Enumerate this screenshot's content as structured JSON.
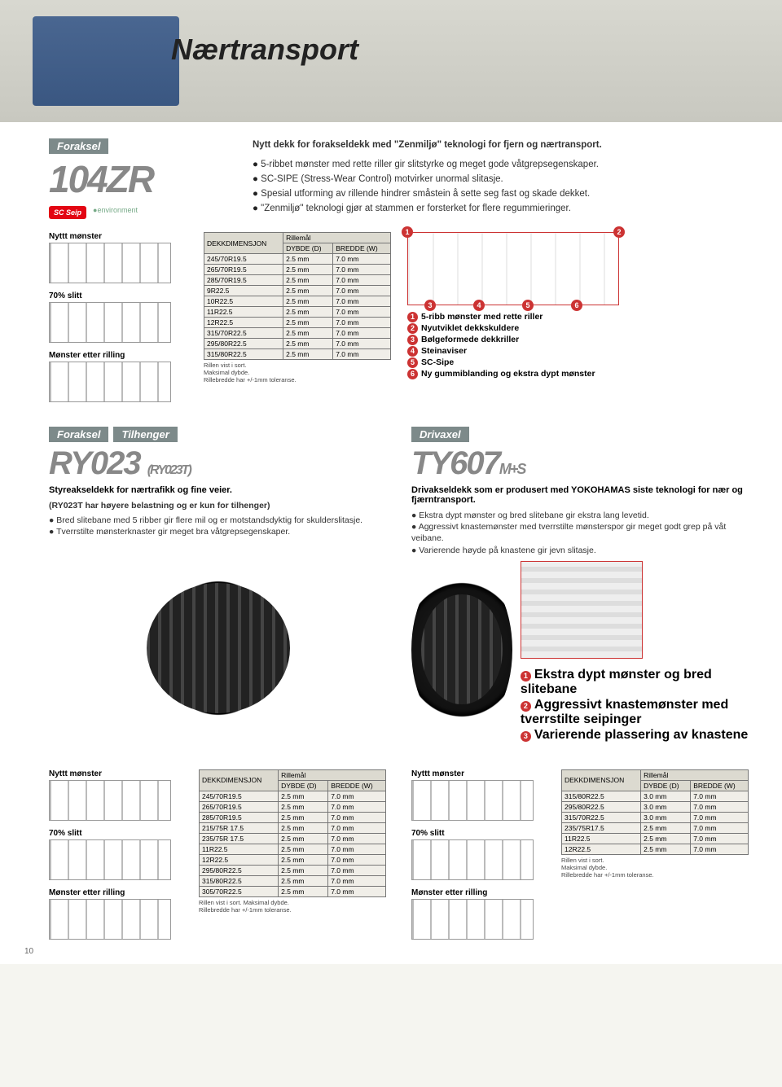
{
  "page": {
    "number": "10"
  },
  "hero": {
    "title": "Nærtransport"
  },
  "colors": {
    "accent": "#e30613",
    "grey": "#7d8a8a",
    "model_grey": "#888888"
  },
  "p104zr": {
    "axle": "Foraksel",
    "model": "104ZR",
    "badge_sc": "SC Seip",
    "badge_env": "●environment",
    "intro": "Nytt dekk for forakseldekk med \"Zenmiljø\" teknologi for fjern og nærtransport.",
    "bullets": [
      "5-ribbet mønster med rette riller gir slitstyrke og meget gode våtgrepsegenskaper.",
      "SC-SIPE (Stress-Wear Control) motvirker unormal slitasje.",
      "Spesial utforming av rillende hindrer småstein å sette seg fast og skade dekket.",
      "\"Zenmiljø\" teknologi gjør at stammen er forsterket for flere regummieringer."
    ],
    "pattern_labels": {
      "new": "Nyttt mønster",
      "worn70": "70% slitt",
      "after": "Mønster etter rilling"
    },
    "table": {
      "title": "Rillemål",
      "col_dim": "DEKKDIMENSJON",
      "col_d": "DYBDE (D)",
      "col_w": "BREDDE (W)",
      "rows": [
        [
          "245/70R19.5",
          "2.5 mm",
          "7.0 mm"
        ],
        [
          "265/70R19.5",
          "2.5 mm",
          "7.0 mm"
        ],
        [
          "285/70R19.5",
          "2.5 mm",
          "7.0 mm"
        ],
        [
          "9R22.5",
          "2.5 mm",
          "7.0 mm"
        ],
        [
          "10R22.5",
          "2.5 mm",
          "7.0 mm"
        ],
        [
          "11R22.5",
          "2.5 mm",
          "7.0 mm"
        ],
        [
          "12R22.5",
          "2.5 mm",
          "7.0 mm"
        ],
        [
          "315/70R22.5",
          "2.5 mm",
          "7.0 mm"
        ],
        [
          "295/80R22.5",
          "2.5 mm",
          "7.0 mm"
        ],
        [
          "315/80R22.5",
          "2.5 mm",
          "7.0 mm"
        ]
      ],
      "notes": [
        "Rillen vist i sort.",
        "Maksimal dybde.",
        "Rillebredde har +/-1mm toleranse."
      ]
    },
    "callouts": [
      "5-ribb mønster med rette riller",
      "Nyutviklet dekkskuldere",
      "Bølgeformede dekkriller",
      "Steinaviser",
      "SC-Sipe",
      "Ny gummiblanding og ekstra dypt mønster"
    ]
  },
  "ry023": {
    "axle1": "Foraksel",
    "axle2": "Tilhenger",
    "model": "RY023",
    "model_alt": "(RY023T)",
    "tagline": "Styreakseldekk for nærtrafikk og fine veier.",
    "note": "(RY023T har høyere belastning og er kun for tilhenger)",
    "bullets": [
      "Bred slitebane med 5 ribber gir flere mil og er motstandsdyktig for skulderslitasje.",
      "Tverrstilte mønsterknaster gir meget bra våtgrepsegenskaper."
    ],
    "table": {
      "title": "Rillemål",
      "col_dim": "DEKKDIMENSJON",
      "col_d": "DYBDE (D)",
      "col_w": "BREDDE (W)",
      "rows": [
        [
          "245/70R19.5",
          "2.5 mm",
          "7.0 mm"
        ],
        [
          "265/70R19.5",
          "2.5 mm",
          "7.0 mm"
        ],
        [
          "285/70R19.5",
          "2.5 mm",
          "7.0 mm"
        ],
        [
          "215/75R 17.5",
          "2.5 mm",
          "7.0 mm"
        ],
        [
          "235/75R 17.5",
          "2.5 mm",
          "7.0 mm"
        ],
        [
          "11R22.5",
          "2.5 mm",
          "7.0 mm"
        ],
        [
          "12R22.5",
          "2.5 mm",
          "7.0 mm"
        ],
        [
          "295/80R22.5",
          "2.5 mm",
          "7.0 mm"
        ],
        [
          "315/80R22.5",
          "2.5 mm",
          "7.0 mm"
        ],
        [
          "305/70R22.5",
          "2.5 mm",
          "7.0 mm"
        ]
      ],
      "notes": [
        "Rillen vist i sort. Maksimal dybde.",
        "Rillebredde har +/-1mm toleranse."
      ]
    }
  },
  "ty607": {
    "axle": "Drivaxel",
    "model": "TY607",
    "model_suffix": "M+S",
    "tagline": "Drivakseldekk som er produsert med YOKOHAMAS siste teknologi for nær og fjærntransport.",
    "bullets": [
      "Ekstra dypt mønster og bred slitebane gir ekstra lang levetid.",
      "Aggressivt knastemønster med tverrstilte mønsterspor gir meget godt grep på våt veibane.",
      "Varierende høyde på knastene gir jevn slitasje."
    ],
    "callouts": [
      "Ekstra dypt mønster og bred slitebane",
      "Aggressivt knastemønster med tverrstilte seipinger",
      "Varierende plassering av knastene"
    ],
    "table": {
      "title": "Rillemål",
      "col_dim": "DEKKDIMENSJON",
      "col_d": "DYBDE (D)",
      "col_w": "BREDDE (W)",
      "rows": [
        [
          "315/80R22.5",
          "3.0 mm",
          "7.0 mm"
        ],
        [
          "295/80R22.5",
          "3.0 mm",
          "7.0 mm"
        ],
        [
          "315/70R22.5",
          "3.0 mm",
          "7.0 mm"
        ],
        [
          "235/75R17.5",
          "2.5 mm",
          "7.0 mm"
        ],
        [
          "11R22.5",
          "2.5 mm",
          "7.0 mm"
        ],
        [
          "12R22.5",
          "2.5 mm",
          "7.0 mm"
        ]
      ],
      "notes": [
        "Rillen vist i sort.",
        "Maksimal dybde.",
        "Rillebredde har +/-1mm toleranse."
      ]
    }
  }
}
